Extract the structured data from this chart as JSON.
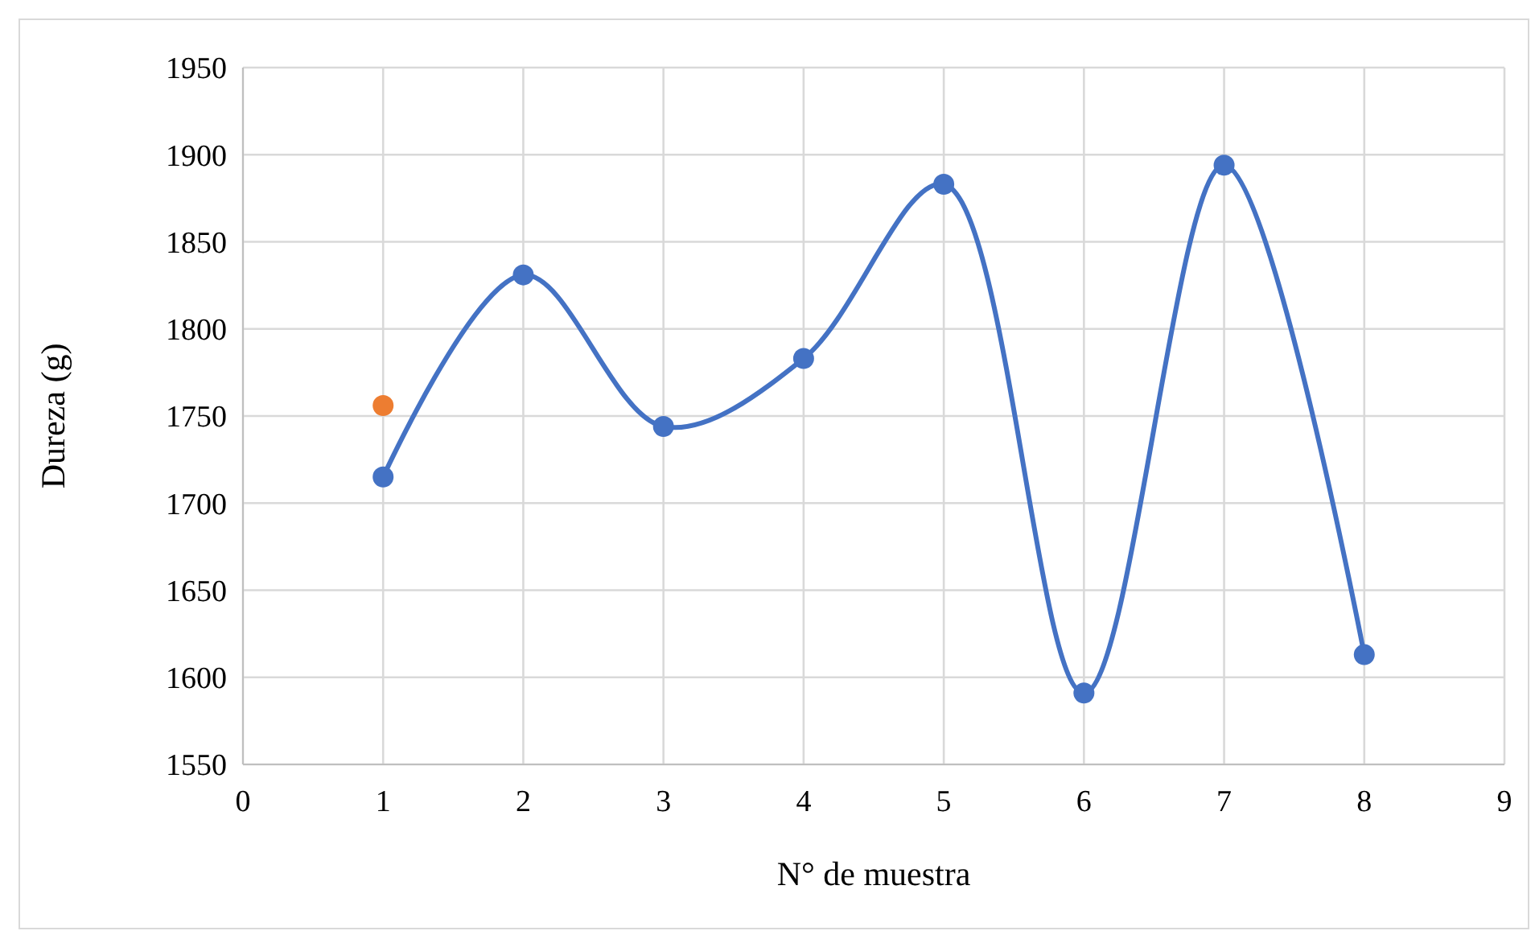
{
  "chart_data": {
    "type": "line",
    "xlabel": "N° de muestra",
    "ylabel": "Dureza (g)",
    "xlim": [
      0,
      9
    ],
    "xticks": [
      0,
      1,
      2,
      3,
      4,
      5,
      6,
      7,
      8,
      9
    ],
    "ylim": [
      1550,
      1950
    ],
    "yticks": [
      1550,
      1600,
      1650,
      1700,
      1750,
      1800,
      1850,
      1900,
      1950
    ],
    "grid": true,
    "marker": "circle",
    "series": [
      {
        "color": "#4472c4",
        "x": [
          1,
          2,
          3,
          4,
          5,
          6,
          7,
          8
        ],
        "values": [
          1715,
          1831,
          1744,
          1783,
          1883,
          1591,
          1894,
          1613
        ]
      },
      {
        "type": "scatter",
        "color": "#ed7d31",
        "x": [
          1
        ],
        "values": [
          1756
        ]
      }
    ]
  }
}
